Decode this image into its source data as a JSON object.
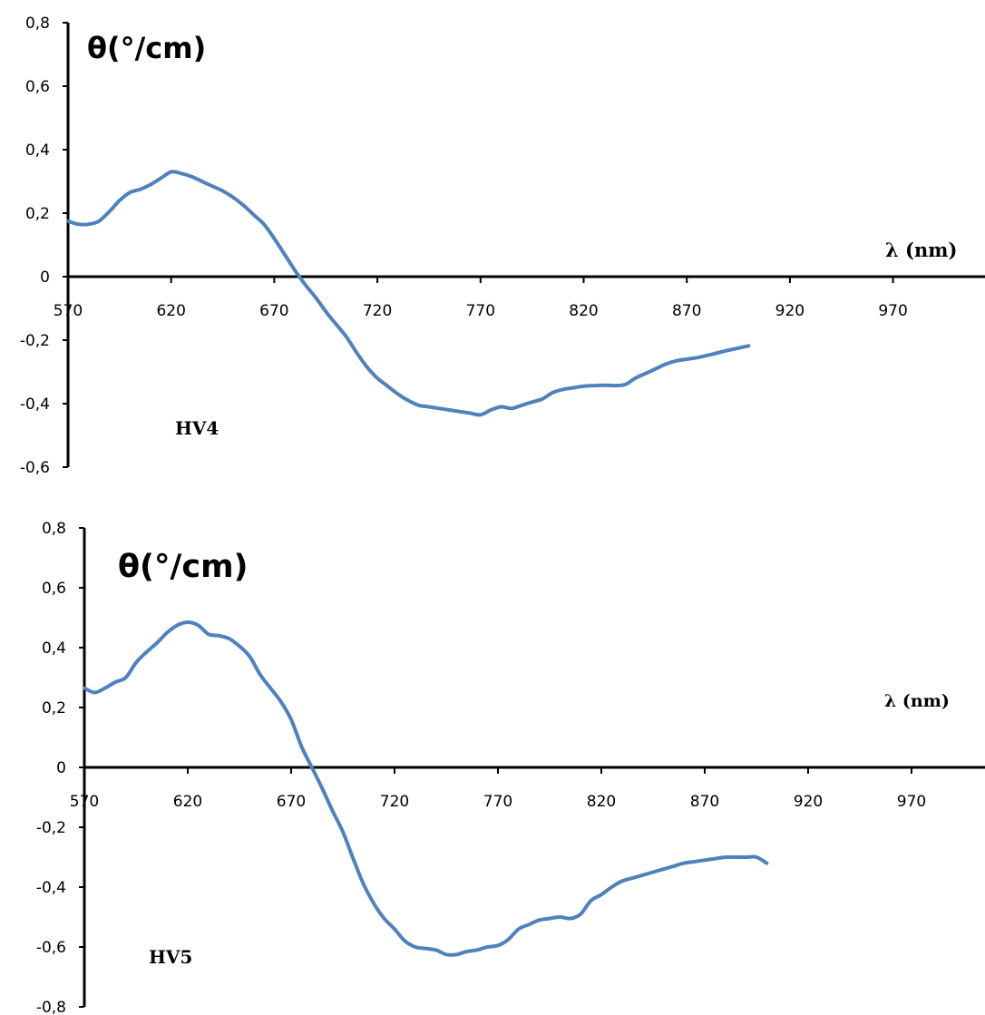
{
  "colors": {
    "series": "#4F81BD",
    "axis": "#000000"
  },
  "chart_data": [
    {
      "type": "line",
      "ylabel": "θ(°/cm)",
      "xlabel": "λ (nm)",
      "annotation": "HV4",
      "xlim": [
        570,
        1010
      ],
      "ylim": [
        -0.6,
        0.8
      ],
      "xticks": [
        570,
        620,
        670,
        720,
        770,
        820,
        870,
        920,
        970
      ],
      "xtick_labels": [
        "570",
        "620",
        "670",
        "720",
        "770",
        "820",
        "870",
        "920",
        "970"
      ],
      "yticks": [
        -0.6,
        -0.4,
        -0.2,
        0,
        0.2,
        0.4,
        0.6,
        0.8
      ],
      "ytick_labels": [
        "-0,6",
        "-0,4",
        "-0,2",
        "0",
        "0,2",
        "0,4",
        "0,6",
        "0,8"
      ],
      "grid": false,
      "series": [
        {
          "x": [
            570,
            575,
            580,
            585,
            590,
            595,
            600,
            605,
            610,
            615,
            620,
            625,
            630,
            635,
            640,
            645,
            650,
            655,
            660,
            665,
            670,
            675,
            680,
            685,
            690,
            695,
            700,
            705,
            710,
            715,
            720,
            725,
            730,
            735,
            740,
            745,
            750,
            755,
            760,
            765,
            770,
            775,
            780,
            785,
            790,
            795,
            800,
            805,
            810,
            815,
            820,
            825,
            830,
            835,
            840,
            845,
            850,
            855,
            860,
            865,
            870,
            875,
            880,
            885,
            890,
            895,
            900
          ],
          "y": [
            0.175,
            0.165,
            0.165,
            0.175,
            0.205,
            0.24,
            0.265,
            0.275,
            0.29,
            0.31,
            0.33,
            0.325,
            0.315,
            0.3,
            0.285,
            0.27,
            0.25,
            0.225,
            0.195,
            0.165,
            0.12,
            0.07,
            0.02,
            -0.025,
            -0.065,
            -0.11,
            -0.15,
            -0.19,
            -0.24,
            -0.285,
            -0.32,
            -0.345,
            -0.37,
            -0.39,
            -0.405,
            -0.41,
            -0.415,
            -0.42,
            -0.425,
            -0.43,
            -0.435,
            -0.42,
            -0.41,
            -0.415,
            -0.405,
            -0.395,
            -0.385,
            -0.365,
            -0.355,
            -0.35,
            -0.345,
            -0.343,
            -0.342,
            -0.343,
            -0.34,
            -0.32,
            -0.305,
            -0.29,
            -0.275,
            -0.265,
            -0.26,
            -0.255,
            -0.248,
            -0.24,
            -0.232,
            -0.225,
            -0.218
          ]
        }
      ]
    },
    {
      "type": "line",
      "ylabel": "θ(°/cm)",
      "xlabel": "λ (nm)",
      "annotation": "HV5",
      "xlim": [
        570,
        1010
      ],
      "ylim": [
        -0.8,
        0.8
      ],
      "xticks": [
        570,
        620,
        670,
        720,
        770,
        820,
        870,
        920,
        970
      ],
      "xtick_labels": [
        "570",
        "620",
        "670",
        "720",
        "770",
        "820",
        "870",
        "920",
        "970"
      ],
      "yticks": [
        -0.8,
        -0.6,
        -0.4,
        -0.2,
        0,
        0.2,
        0.4,
        0.6,
        0.8
      ],
      "ytick_labels": [
        "-0,8",
        "-0,6",
        "-0,4",
        "-0,2",
        "0",
        "0,2",
        "0,4",
        "0,6",
        "0,8"
      ],
      "grid": false,
      "series": [
        {
          "x": [
            570,
            575,
            580,
            585,
            590,
            595,
            600,
            605,
            610,
            615,
            620,
            625,
            630,
            635,
            640,
            645,
            650,
            655,
            660,
            665,
            670,
            675,
            680,
            685,
            690,
            695,
            700,
            705,
            710,
            715,
            720,
            725,
            730,
            735,
            740,
            745,
            750,
            755,
            760,
            765,
            770,
            775,
            780,
            785,
            790,
            795,
            800,
            805,
            810,
            815,
            820,
            825,
            830,
            835,
            840,
            845,
            850,
            855,
            860,
            865,
            870,
            875,
            880,
            885,
            890,
            895,
            900
          ],
          "y": [
            0.265,
            0.25,
            0.265,
            0.285,
            0.3,
            0.35,
            0.385,
            0.415,
            0.45,
            0.475,
            0.485,
            0.475,
            0.445,
            0.44,
            0.43,
            0.405,
            0.37,
            0.31,
            0.265,
            0.22,
            0.16,
            0.07,
            0.0,
            -0.07,
            -0.145,
            -0.215,
            -0.305,
            -0.39,
            -0.455,
            -0.505,
            -0.54,
            -0.58,
            -0.6,
            -0.605,
            -0.61,
            -0.625,
            -0.625,
            -0.615,
            -0.61,
            -0.6,
            -0.595,
            -0.575,
            -0.54,
            -0.525,
            -0.51,
            -0.505,
            -0.5,
            -0.505,
            -0.49,
            -0.445,
            -0.425,
            -0.4,
            -0.38,
            -0.37,
            -0.36,
            -0.35,
            -0.34,
            -0.33,
            -0.32,
            -0.315,
            -0.31,
            -0.305,
            -0.3,
            -0.3,
            -0.3,
            -0.3,
            -0.32
          ]
        }
      ]
    }
  ]
}
